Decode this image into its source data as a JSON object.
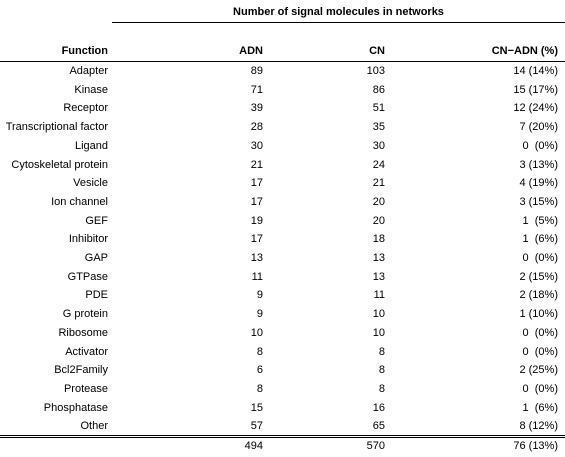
{
  "table": {
    "title": "Number of signal molecules in networks",
    "headers": {
      "function": "Function",
      "adn": "ADN",
      "cn": "CN",
      "diff": "CN−ADN (%)"
    },
    "rows": [
      {
        "function": "Adapter",
        "adn": "89",
        "cn": "103",
        "diff": "14 (14%)"
      },
      {
        "function": "Kinase",
        "adn": "71",
        "cn": "86",
        "diff": "15 (17%)"
      },
      {
        "function": "Receptor",
        "adn": "39",
        "cn": "51",
        "diff": "12 (24%)"
      },
      {
        "function": "Transcriptional factor",
        "adn": "28",
        "cn": "35",
        "diff": "7 (20%)"
      },
      {
        "function": "Ligand",
        "adn": "30",
        "cn": "30",
        "diff": "0  (0%)"
      },
      {
        "function": "Cytoskeletal protein",
        "adn": "21",
        "cn": "24",
        "diff": "3 (13%)"
      },
      {
        "function": "Vesicle",
        "adn": "17",
        "cn": "21",
        "diff": "4 (19%)"
      },
      {
        "function": "Ion channel",
        "adn": "17",
        "cn": "20",
        "diff": "3 (15%)"
      },
      {
        "function": "GEF",
        "adn": "19",
        "cn": "20",
        "diff": "1  (5%)"
      },
      {
        "function": "Inhibitor",
        "adn": "17",
        "cn": "18",
        "diff": "1  (6%)"
      },
      {
        "function": "GAP",
        "adn": "13",
        "cn": "13",
        "diff": "0  (0%)"
      },
      {
        "function": "GTPase",
        "adn": "11",
        "cn": "13",
        "diff": "2 (15%)"
      },
      {
        "function": "PDE",
        "adn": "9",
        "cn": "11",
        "diff": "2 (18%)"
      },
      {
        "function": "G protein",
        "adn": "9",
        "cn": "10",
        "diff": "1 (10%)"
      },
      {
        "function": "Ribosome",
        "adn": "10",
        "cn": "10",
        "diff": "0  (0%)"
      },
      {
        "function": "Activator",
        "adn": "8",
        "cn": "8",
        "diff": "0  (0%)"
      },
      {
        "function": "Bcl2Family",
        "adn": "6",
        "cn": "8",
        "diff": "2 (25%)"
      },
      {
        "function": "Protease",
        "adn": "8",
        "cn": "8",
        "diff": "0  (0%)"
      },
      {
        "function": "Phosphatase",
        "adn": "15",
        "cn": "16",
        "diff": "1  (6%)"
      },
      {
        "function": "Other",
        "adn": "57",
        "cn": "65",
        "diff": "8 (12%)"
      }
    ],
    "total": {
      "adn": "494",
      "cn": "570",
      "diff": "76 (13%)"
    }
  }
}
